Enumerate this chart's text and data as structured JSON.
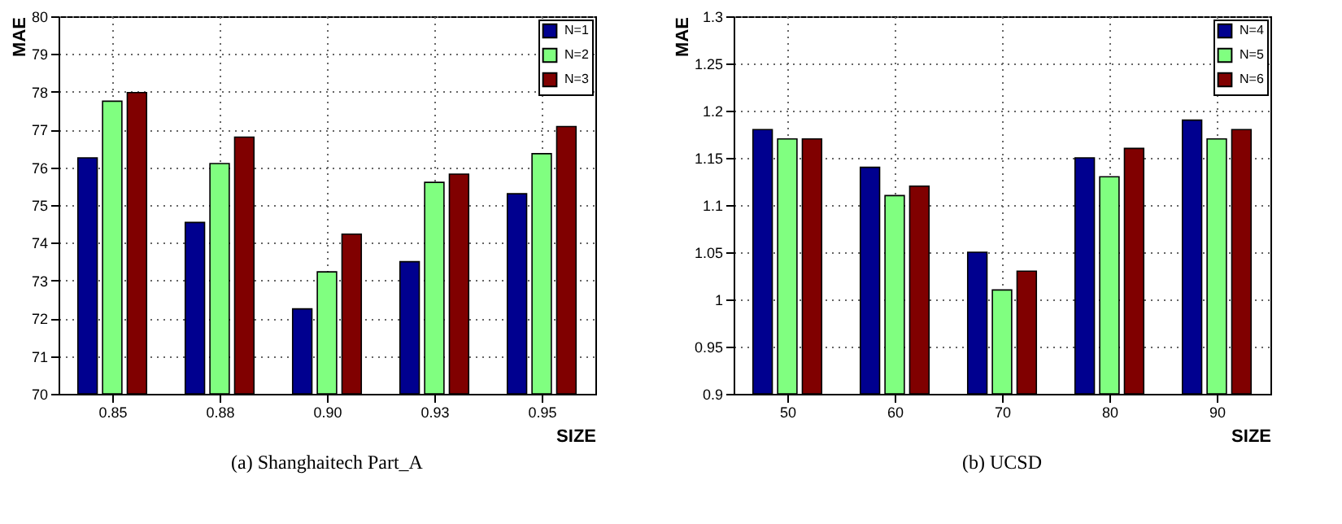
{
  "chart_data": [
    {
      "type": "bar",
      "categories": [
        "0.85",
        "0.88",
        "0.90",
        "0.93",
        "0.95"
      ],
      "xlabel": "SIZE",
      "ylabel": "MAE",
      "ylim": [
        70,
        80
      ],
      "yticks": [
        70,
        71,
        72,
        73,
        74,
        75,
        76,
        77,
        78,
        79,
        80
      ],
      "grid": true,
      "legend": "top right",
      "annotations": [
        "(a) Shanghaitech Part_A"
      ],
      "series": [
        {
          "name": "N=1",
          "color": "#00008f",
          "values": [
            76.25,
            74.54,
            72.25,
            73.5,
            75.3
          ]
        },
        {
          "name": "N=2",
          "color": "#80ff80",
          "values": [
            77.75,
            76.1,
            73.23,
            75.6,
            76.36
          ]
        },
        {
          "name": "N=3",
          "color": "#800000",
          "values": [
            77.98,
            76.8,
            74.23,
            75.82,
            77.08
          ]
        }
      ]
    },
    {
      "type": "bar",
      "categories": [
        "50",
        "60",
        "70",
        "80",
        "90"
      ],
      "xlabel": "SIZE",
      "ylabel": "MAE",
      "ylim": [
        0.9,
        1.3
      ],
      "yticks": [
        0.9,
        0.95,
        1,
        1.05,
        1.1,
        1.15,
        1.2,
        1.25,
        1.3
      ],
      "grid": true,
      "legend": "top right",
      "annotations": [
        "(b) UCSD"
      ],
      "series": [
        {
          "name": "N=4",
          "color": "#00008f",
          "values": [
            1.18,
            1.14,
            1.05,
            1.15,
            1.19
          ]
        },
        {
          "name": "N=5",
          "color": "#80ff80",
          "values": [
            1.17,
            1.11,
            1.01,
            1.13,
            1.17
          ]
        },
        {
          "name": "N=6",
          "color": "#800000",
          "values": [
            1.17,
            1.12,
            1.03,
            1.16,
            1.18
          ]
        }
      ]
    }
  ]
}
